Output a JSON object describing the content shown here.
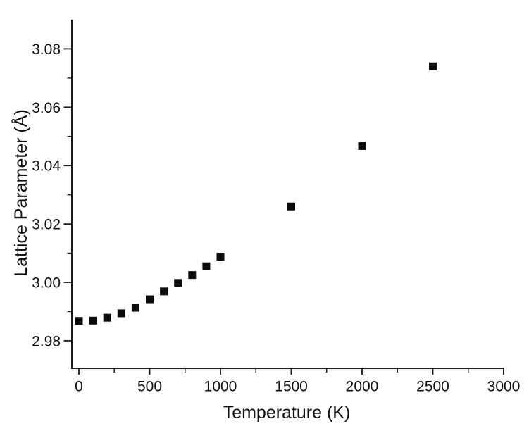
{
  "figure": {
    "background_color": "#ffffff",
    "axis_color": "#1a1a1a",
    "text_color": "#111111",
    "marker_color": "#0b0b0b"
  },
  "chart_data": {
    "type": "scatter",
    "title": "",
    "xlabel": "Temperature (K)",
    "ylabel": "Lattice Parameter (Å)",
    "grid": false,
    "legend": null,
    "marker": "filled-square",
    "xlim": [
      -50,
      3000
    ],
    "ylim": [
      2.97,
      3.09
    ],
    "x_major_ticks": [
      0,
      500,
      1000,
      1500,
      2000,
      2500,
      3000
    ],
    "x_tick_labels": [
      "0",
      "500",
      "1000",
      "1500",
      "2000",
      "2500",
      "3000"
    ],
    "x_minor_ticks": [
      250,
      750,
      1250,
      1750,
      2250,
      2750
    ],
    "y_major_ticks": [
      2.98,
      3.0,
      3.02,
      3.04,
      3.06,
      3.08
    ],
    "y_tick_labels": [
      "2.98",
      "3.00",
      "3.02",
      "3.04",
      "3.06",
      "3.08"
    ],
    "y_minor_ticks": [
      2.99,
      3.01,
      3.03,
      3.05,
      3.07
    ],
    "series": [
      {
        "name": "lattice-parameter",
        "x": [
          0,
          100,
          200,
          300,
          400,
          500,
          600,
          700,
          800,
          900,
          1000,
          1500,
          2000,
          2500
        ],
        "y": [
          2.9868,
          2.9869,
          2.9879,
          2.9894,
          2.9913,
          2.9942,
          2.9969,
          2.9998,
          3.0025,
          3.0055,
          3.0088,
          3.026,
          3.0467,
          3.074
        ]
      }
    ]
  }
}
